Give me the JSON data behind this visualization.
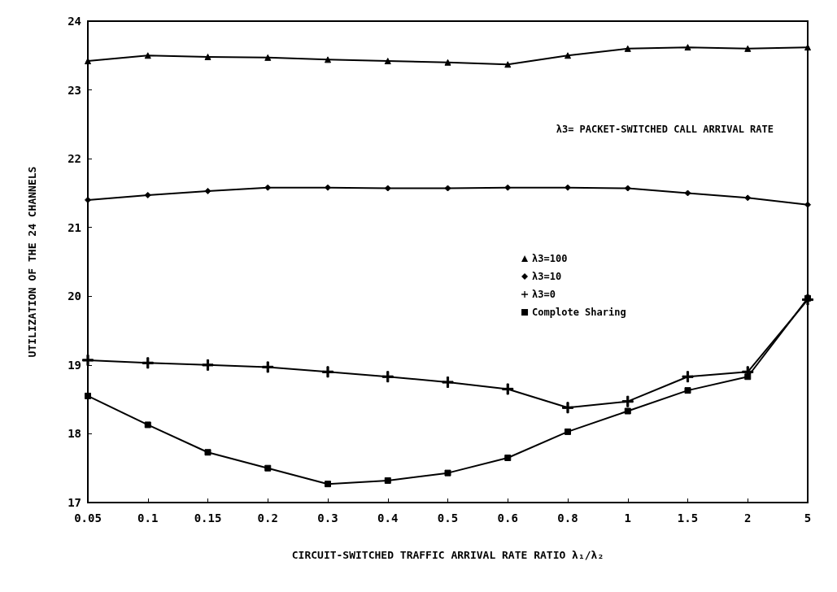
{
  "chart_data": {
    "type": "line",
    "xlabel": "CIRCUIT-SWITCHED TRAFFIC ARRIVAL RATE RATIO λ₁/λ₂",
    "ylabel": "UTILIZATION OF THE 24 CHANNELS",
    "annotations": [
      "λ3= PACKET-SWITCHED CALL ARRIVAL RATE"
    ],
    "categories": [
      "0.05",
      "0.1",
      "0.15",
      "0.2",
      "0.3",
      "0.4",
      "0.5",
      "0.6",
      "0.8",
      "1",
      "1.5",
      "2",
      "5"
    ],
    "ylim": [
      17,
      24
    ],
    "yticks": [
      17,
      18,
      19,
      20,
      21,
      22,
      23,
      24
    ],
    "grid": false,
    "legend": "right",
    "line_style": "solid",
    "series": [
      {
        "name": "λ3=100",
        "color": "#000000",
        "marker": "triangle",
        "values": [
          23.42,
          23.5,
          23.48,
          23.47,
          23.44,
          23.42,
          23.4,
          23.37,
          23.5,
          23.6,
          23.62,
          23.6,
          23.62
        ]
      },
      {
        "name": "λ3=10",
        "color": "#000000",
        "marker": "diamond",
        "values": [
          21.4,
          21.47,
          21.53,
          21.58,
          21.58,
          21.57,
          21.57,
          21.58,
          21.58,
          21.57,
          21.5,
          21.43,
          21.33
        ]
      },
      {
        "name": "λ3=0",
        "color": "#000000",
        "marker": "cross",
        "values": [
          19.07,
          19.03,
          19.0,
          18.97,
          18.9,
          18.83,
          18.75,
          18.65,
          18.38,
          18.47,
          18.83,
          18.9,
          19.95
        ]
      },
      {
        "name": "Complote Sharing",
        "color": "#000000",
        "marker": "square",
        "values": [
          18.55,
          18.13,
          17.73,
          17.5,
          17.27,
          17.32,
          17.43,
          17.65,
          18.03,
          18.33,
          18.63,
          18.83,
          19.97
        ]
      }
    ]
  }
}
